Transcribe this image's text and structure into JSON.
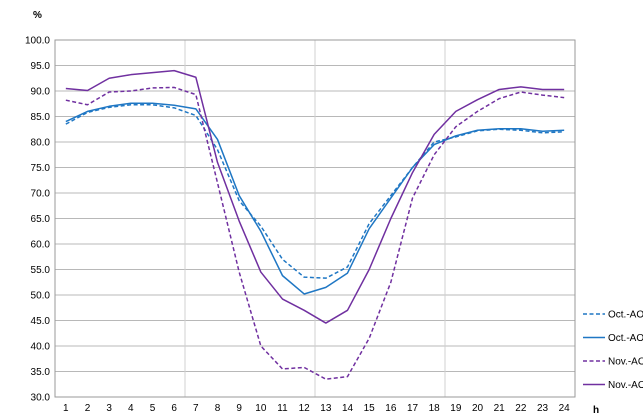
{
  "chart_data": {
    "type": "line",
    "x": [
      1,
      2,
      3,
      4,
      5,
      6,
      7,
      8,
      9,
      10,
      11,
      12,
      13,
      14,
      15,
      16,
      17,
      18,
      19,
      20,
      21,
      22,
      23,
      24
    ],
    "xlabel": "h",
    "ylabel": "%",
    "ylim": [
      30,
      100
    ],
    "yticks": [
      30,
      35,
      40,
      45,
      50,
      55,
      60,
      65,
      70,
      75,
      80,
      85,
      90,
      95,
      100
    ],
    "grid": true,
    "legend_position": "bottom-right",
    "series": [
      {
        "name": "Oct.-AO",
        "color": "#1f77c4",
        "dash": "dashed",
        "values": [
          83.5,
          85.8,
          86.8,
          87.3,
          87.3,
          86.7,
          85.2,
          78.5,
          68.5,
          63.5,
          57.0,
          53.5,
          53.3,
          55.5,
          64.0,
          69.5,
          75.0,
          80.0,
          81.0,
          82.2,
          82.5,
          82.3,
          81.8,
          82.0
        ]
      },
      {
        "name": "Oct.-AO(G)",
        "color": "#1f77c4",
        "dash": "solid",
        "values": [
          84.0,
          86.0,
          87.0,
          87.6,
          87.6,
          87.2,
          86.5,
          80.5,
          69.5,
          62.5,
          53.8,
          50.2,
          51.5,
          54.3,
          63.0,
          69.0,
          75.0,
          79.5,
          81.2,
          82.3,
          82.6,
          82.6,
          82.1,
          82.3
        ]
      },
      {
        "name": "Nov.-AO",
        "color": "#7030a0",
        "dash": "dashed",
        "values": [
          88.2,
          87.3,
          89.8,
          90.0,
          90.6,
          90.7,
          89.3,
          72.0,
          54.5,
          40.0,
          35.5,
          35.8,
          33.5,
          34.0,
          41.5,
          52.5,
          69.0,
          77.5,
          83.0,
          86.0,
          88.5,
          89.8,
          89.2,
          88.7
        ]
      },
      {
        "name": "Nov.-AO(G)",
        "color": "#7030a0",
        "dash": "solid",
        "values": [
          90.5,
          90.1,
          92.5,
          93.2,
          93.6,
          94.0,
          92.7,
          76.0,
          64.5,
          54.5,
          49.2,
          47.0,
          44.5,
          47.0,
          55.0,
          65.0,
          74.0,
          81.5,
          86.0,
          88.3,
          90.3,
          90.8,
          90.3,
          90.3
        ]
      }
    ]
  }
}
